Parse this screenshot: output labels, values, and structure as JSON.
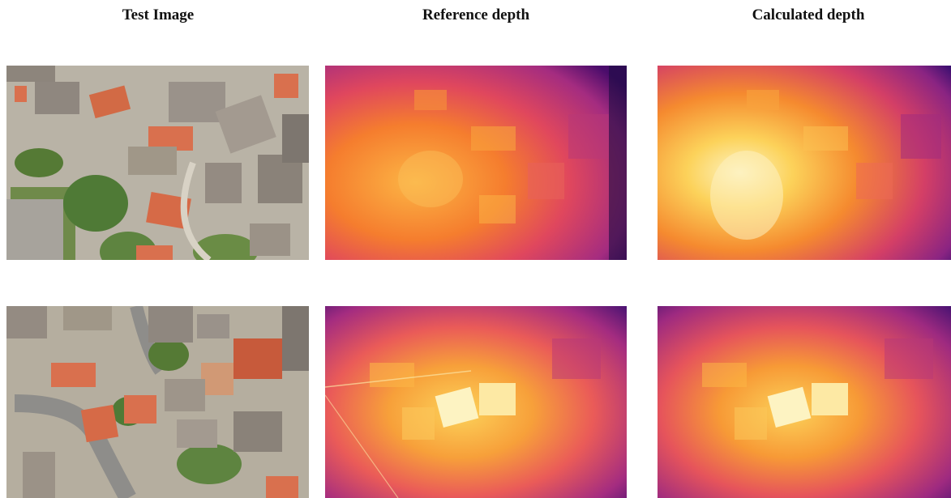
{
  "columns": {
    "test_image": "Test Image",
    "reference_depth": "Reference depth",
    "calculated_depth": "Calculated depth"
  },
  "rows": [
    {
      "test_image": "aerial photo of a hillside village: terracotta roofs, gray concrete rooftops, green vegetation, a vacant lot at left",
      "reference_depth": "inferno-colormap depth map, bright orange/yellow center-left, purple edges",
      "calculated_depth": "inferno-colormap depth map, bright yellow/white glow at center-left, purple right side"
    },
    {
      "test_image": "aerial photo of a village with a curving road at left, terracotta and gray rooftops, courtyards",
      "reference_depth": "inferno-colormap depth map with pale yellow rooftops at center, purple corners",
      "calculated_depth": "inferno-colormap depth map with pale yellow rooftops at center, purple corners"
    }
  ],
  "colors": {
    "depth_far": "#3b0f70",
    "depth_mid": "#e4466a",
    "depth_near": "#fcd25a",
    "depth_max": "#fdf3c2",
    "roof_terracotta": "#d9704e",
    "roof_gray": "#9a928a",
    "vegetation": "#4f7a36"
  }
}
